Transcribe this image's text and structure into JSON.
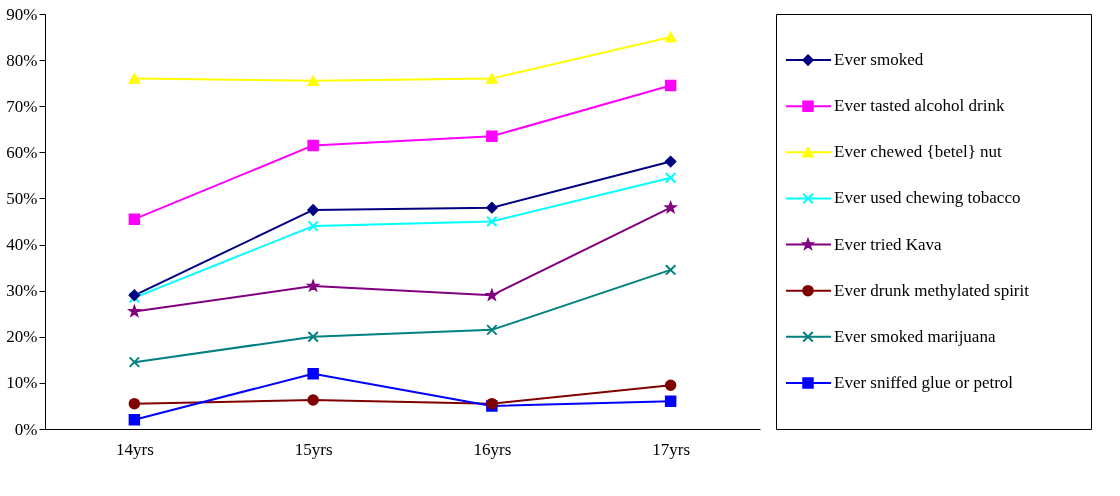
{
  "chart_data": {
    "type": "line",
    "categories": [
      "14yrs",
      "15yrs",
      "16yrs",
      "17yrs"
    ],
    "series": [
      {
        "name": "Ever smoked",
        "color": "#000080",
        "marker": "diamond",
        "values": [
          29,
          47.5,
          48,
          58
        ]
      },
      {
        "name": "Ever tasted alcohol drink",
        "color": "#ff00ff",
        "marker": "square",
        "values": [
          45.5,
          61.5,
          63.5,
          74.5
        ]
      },
      {
        "name": "Ever chewed {betel} nut",
        "color": "#ffff00",
        "marker": "triangle",
        "values": [
          76,
          75.5,
          76,
          85
        ]
      },
      {
        "name": "Ever used chewing tobacco",
        "color": "#00ffff",
        "marker": "cross",
        "values": [
          28.5,
          44,
          45,
          54.5
        ]
      },
      {
        "name": "Ever tried Kava",
        "color": "#800080",
        "marker": "star",
        "values": [
          25.5,
          31,
          29,
          48
        ]
      },
      {
        "name": "Ever drunk methylated spirit",
        "color": "#800000",
        "marker": "circle",
        "values": [
          5.5,
          6.3,
          5.5,
          9.5
        ]
      },
      {
        "name": "Ever smoked marijuana",
        "color": "#008080",
        "marker": "cross",
        "values": [
          14.5,
          20,
          21.5,
          34.5
        ]
      },
      {
        "name": "Ever sniffed glue or petrol",
        "color": "#0000ff",
        "marker": "square",
        "values": [
          2,
          12,
          5,
          6
        ]
      }
    ],
    "ylim": [
      0,
      90
    ],
    "yticks": [
      {
        "value": 0,
        "label": "0%"
      },
      {
        "value": 10,
        "label": "10%"
      },
      {
        "value": 20,
        "label": "20%"
      },
      {
        "value": 30,
        "label": "30%"
      },
      {
        "value": 40,
        "label": "40%"
      },
      {
        "value": 50,
        "label": "50%"
      },
      {
        "value": 60,
        "label": "60%"
      },
      {
        "value": 70,
        "label": "70%"
      },
      {
        "value": 80,
        "label": "80%"
      },
      {
        "value": 90,
        "label": "90%"
      }
    ],
    "grid": false,
    "legend": "right",
    "line_style": "solid"
  }
}
